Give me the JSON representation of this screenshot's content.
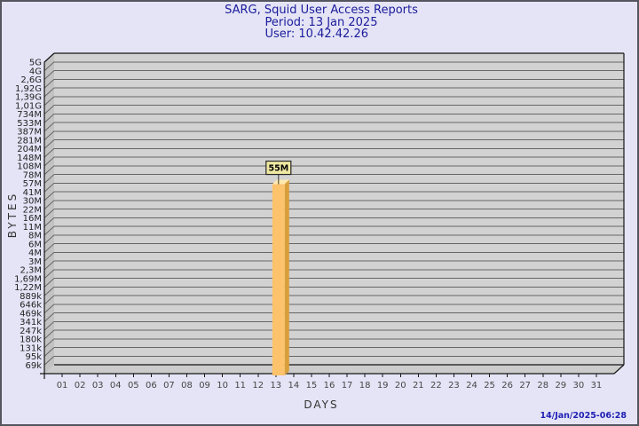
{
  "header": {
    "title": "SARG, Squid User Access Reports",
    "period": "Period: 13 Jan 2025",
    "user": "User: 10.42.42.26",
    "color": "#1b1b9c"
  },
  "footer": {
    "timestamp": "14/Jan/2025-06:28",
    "color": "#1e1eb4"
  },
  "chart_data": {
    "type": "bar",
    "title": "SARG, Squid User Access Reports",
    "subtitle": [
      "Period: 13 Jan 2025",
      "User: 10.42.42.26"
    ],
    "xlabel": "DAYS",
    "ylabel": "BYTES",
    "y_scale": "log",
    "x_tick_labels": [
      "01",
      "02",
      "03",
      "04",
      "05",
      "06",
      "07",
      "08",
      "09",
      "10",
      "11",
      "12",
      "13",
      "14",
      "15",
      "16",
      "17",
      "18",
      "19",
      "20",
      "21",
      "22",
      "23",
      "24",
      "25",
      "26",
      "27",
      "28",
      "29",
      "30",
      "31"
    ],
    "y_tick_labels": [
      "5G",
      "4G",
      "2,6G",
      "1,92G",
      "1,39G",
      "1,01G",
      "734M",
      "533M",
      "387M",
      "281M",
      "204M",
      "148M",
      "108M",
      "78M",
      "57M",
      "41M",
      "30M",
      "22M",
      "16M",
      "11M",
      "8M",
      "6M",
      "4M",
      "3M",
      "2,3M",
      "1,69M",
      "1,22M",
      "889k",
      "646k",
      "469k",
      "341k",
      "247k",
      "180k",
      "131k",
      "95k",
      "69k"
    ],
    "bars": [
      {
        "day": "13",
        "value_label": "55M",
        "value_bytes": 55000000
      }
    ],
    "legend": null,
    "grid": true,
    "colors": {
      "plane": "#d2d2d2",
      "wall": "#c2c2c2",
      "floor": "#cccccc",
      "grid": "#666666",
      "edge": "#161616",
      "y_label": "#222222",
      "x_label": "#464646",
      "bar_front": "#fdc26c",
      "bar_side": "#d99f3a",
      "bar_top": "#ffe9ae",
      "annotation_bg": "#efe8a2",
      "annotation_border": "#262626",
      "annotation_text": "#000000"
    }
  }
}
